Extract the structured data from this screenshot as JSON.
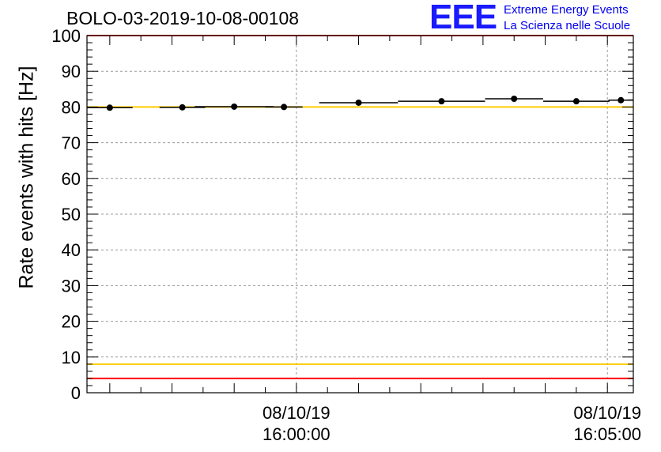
{
  "chart_data": {
    "type": "scatter",
    "title": "BOLO-03-2019-10-08-00108",
    "ylabel": "Rate events with hits [Hz]",
    "xlabel": "",
    "ylim": [
      0,
      100
    ],
    "yticks": [
      0,
      10,
      20,
      30,
      40,
      50,
      60,
      70,
      80,
      90,
      100
    ],
    "xlim": [
      "08/10/19 15:56:38",
      "08/10/19 16:05:25"
    ],
    "xticks": [
      {
        "time": "08/10/19 16:00:00",
        "date": "08/10/19",
        "clock": "16:00:00"
      },
      {
        "time": "08/10/19 16:05:00",
        "date": "08/10/19",
        "clock": "16:05:00"
      }
    ],
    "grid": true,
    "points": [
      {
        "x": "08/10/19 15:57:00",
        "x_err_s": 22,
        "y": 79.8,
        "y_err": 0.6
      },
      {
        "x": "08/10/19 15:58:10",
        "x_err_s": 22,
        "y": 79.9,
        "y_err": 0.6
      },
      {
        "x": "08/10/19 15:59:00",
        "x_err_s": 38,
        "y": 80.1,
        "y_err": 0.6
      },
      {
        "x": "08/10/19 15:59:48",
        "x_err_s": 18,
        "y": 80.0,
        "y_err": 0.6
      },
      {
        "x": "08/10/19 16:01:00",
        "x_err_s": 38,
        "y": 81.2,
        "y_err": 0.6
      },
      {
        "x": "08/10/19 16:02:20",
        "x_err_s": 42,
        "y": 81.6,
        "y_err": 0.6
      },
      {
        "x": "08/10/19 16:03:30",
        "x_err_s": 28,
        "y": 82.3,
        "y_err": 0.6
      },
      {
        "x": "08/10/19 16:04:30",
        "x_err_s": 32,
        "y": 81.6,
        "y_err": 0.6
      },
      {
        "x": "08/10/19 16:05:13",
        "x_err_s": 12,
        "y": 81.9,
        "y_err": 0.6
      }
    ],
    "reference_lines": [
      {
        "y": 100,
        "color": "#ff0000"
      },
      {
        "y": 80,
        "color": "#ffcc00"
      },
      {
        "y": 8,
        "color": "#ffcc00"
      },
      {
        "y": 4,
        "color": "#ff0000"
      }
    ]
  },
  "logo": {
    "mark": "EEE",
    "line1": "Extreme Energy Events",
    "line2": "La Scienza nelle Scuole",
    "color": "#1a1aff"
  }
}
